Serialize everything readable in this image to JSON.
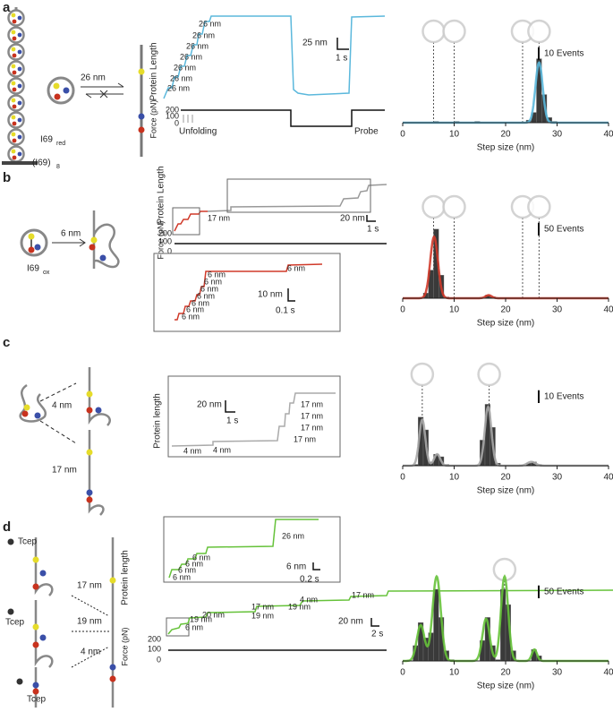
{
  "figure": {
    "a": {
      "label": "a",
      "chain": "(I69)",
      "chain_sub": "8",
      "arrow_label": "26 nm",
      "state": "I69",
      "state_sub": "red",
      "y_label": "Protein Length",
      "force_label": "Force (pN)",
      "force_ticks": [
        200,
        100,
        0
      ],
      "steps": [
        "26 nm",
        "26 nm",
        "26 nm",
        "26 nm",
        "26 nm",
        "26 nm",
        "26 nm"
      ],
      "scale_y": "25 nm",
      "scale_x": "1 s",
      "phase_1": "Unfolding",
      "phase_2": "Probe"
    },
    "b": {
      "label": "b",
      "arrow_label": "6 nm",
      "state": "I69",
      "state_sub": "ox",
      "y_label": "Protein Length",
      "force_label": "Force (pN)",
      "force_ticks": [
        200,
        100,
        0
      ],
      "step_main": "17 nm",
      "scale_y": "20 nm",
      "scale_x": "1 s",
      "inset_steps": [
        "6 nm",
        "6 nm",
        "6 nm",
        "6 nm",
        "6 nm",
        "6 nm",
        "6 nm",
        "6 nm"
      ],
      "inset_scale_y": "10 nm",
      "inset_scale_x": "0.1 s"
    },
    "c": {
      "label": "c",
      "arrow_top": "4 nm",
      "arrow_bottom": "17 nm",
      "y_label": "Protein length",
      "scale_y": "20 nm",
      "scale_x": "1 s",
      "steps": [
        "4 nm",
        "4 nm",
        "17 nm",
        "17 nm",
        "17 nm",
        "17 nm"
      ]
    },
    "d": {
      "label": "d",
      "reagent": [
        "Tcep",
        "Tcep",
        "Tcep"
      ],
      "arrows": [
        "17 nm",
        "19 nm",
        "4 nm"
      ],
      "y_label": "Protein length",
      "force_label": "Force (pN)",
      "force_ticks": [
        200,
        100,
        0
      ],
      "inset_steps": [
        "6 nm",
        "6 nm",
        "6 nm",
        "6 nm",
        "26 nm"
      ],
      "inset_scale_y": "6 nm",
      "inset_scale_x": "0.2 s",
      "steps": [
        "6 nm",
        "19 nm",
        "20 nm",
        "17 nm",
        "19 nm",
        "19 nm",
        "4 nm",
        "17 nm"
      ],
      "scale_y": "20 nm",
      "scale_x": "2 s"
    }
  },
  "chart_data": [
    {
      "type": "histogram",
      "xlabel": "Step size (nm)",
      "xlim": [
        0,
        40
      ],
      "xticks": [
        0,
        10,
        20,
        30,
        40
      ],
      "ylim": [
        0,
        70
      ],
      "bins": [
        0,
        1,
        2,
        3,
        4,
        5,
        6,
        7,
        8,
        9,
        10,
        11,
        12,
        13,
        14,
        15,
        16,
        17,
        18,
        19,
        20,
        21,
        22,
        23,
        24,
        25,
        26,
        27,
        28,
        29,
        30,
        31,
        32,
        33,
        34,
        35,
        36,
        37,
        38,
        39,
        40
      ],
      "values": [
        0,
        0,
        0,
        0,
        0,
        0,
        1,
        0,
        0,
        0,
        1,
        0,
        0,
        0,
        1,
        0,
        0,
        0,
        0,
        0,
        0,
        0,
        0,
        0,
        2,
        8,
        50,
        22,
        4,
        1,
        0,
        0,
        0,
        0,
        0,
        0,
        0,
        0,
        0,
        0
      ],
      "color": "#3a3a3a",
      "fit_color": "#5bb8dc",
      "fit_peaks": [
        {
          "mean": 26.5,
          "sd": 0.7,
          "height": 47
        }
      ],
      "scale_bar": {
        "value": 10,
        "label": "10 Events"
      },
      "reference_lines": [
        6,
        10,
        23.3,
        26.5
      ]
    },
    {
      "type": "histogram",
      "xlabel": "Step size (nm)",
      "xlim": [
        0,
        40
      ],
      "xticks": [
        0,
        10,
        20,
        30,
        40
      ],
      "ylim": [
        0,
        350
      ],
      "bins": [
        0,
        1,
        2,
        3,
        4,
        5,
        6,
        7,
        8,
        9,
        10,
        11,
        12,
        13,
        14,
        15,
        16,
        17,
        18,
        19,
        20,
        21,
        22,
        23,
        24,
        25,
        26,
        27,
        28,
        29,
        30,
        31,
        32,
        33,
        34,
        35,
        36,
        37,
        38,
        39,
        40
      ],
      "values": [
        0,
        0,
        0,
        0,
        20,
        110,
        270,
        90,
        5,
        0,
        0,
        0,
        0,
        0,
        0,
        0,
        12,
        6,
        0,
        0,
        0,
        0,
        0,
        0,
        0,
        0,
        0,
        0,
        0,
        0,
        0,
        0,
        0,
        0,
        0,
        0,
        0,
        0,
        0,
        0
      ],
      "color": "#3a3a3a",
      "fit_color": "#d03a2a",
      "fit_peaks": [
        {
          "mean": 6.1,
          "sd": 0.75,
          "height": 240
        },
        {
          "mean": 16.7,
          "sd": 0.6,
          "height": 12
        }
      ],
      "scale_bar": {
        "value": 50,
        "label": "50 Events"
      },
      "reference_lines": [
        6,
        10,
        23.3,
        26.5
      ]
    },
    {
      "type": "histogram",
      "xlabel": "Step size (nm)",
      "xlim": [
        0,
        40
      ],
      "xticks": [
        0,
        10,
        20,
        30,
        40
      ],
      "ylim": [
        0,
        70
      ],
      "bins": [
        0,
        1,
        2,
        3,
        4,
        5,
        6,
        7,
        8,
        9,
        10,
        11,
        12,
        13,
        14,
        15,
        16,
        17,
        18,
        19,
        20,
        21,
        22,
        23,
        24,
        25,
        26,
        27,
        28,
        29,
        30,
        31,
        32,
        33,
        34,
        35,
        36,
        37,
        38,
        39,
        40
      ],
      "values": [
        0,
        0,
        1,
        38,
        28,
        3,
        9,
        7,
        1,
        0,
        0,
        0,
        0,
        0,
        0,
        20,
        48,
        30,
        2,
        0,
        0,
        0,
        0,
        0,
        2,
        3,
        1,
        0,
        0,
        0,
        0,
        0,
        0,
        0,
        0,
        0,
        0,
        0,
        0,
        0
      ],
      "color": "#3a3a3a",
      "fit_color": "#a8a8a8",
      "fit_peaks": [
        {
          "mean": 3.8,
          "sd": 0.6,
          "height": 36
        },
        {
          "mean": 6.7,
          "sd": 0.6,
          "height": 9
        },
        {
          "mean": 16.6,
          "sd": 0.65,
          "height": 46
        },
        {
          "mean": 25,
          "sd": 0.8,
          "height": 3
        }
      ],
      "scale_bar": {
        "value": 10,
        "label": "10 Events"
      },
      "reference_lines": [
        3.8,
        16.8
      ]
    },
    {
      "type": "histogram",
      "xlabel": "Step size (nm)",
      "xlim": [
        0,
        40
      ],
      "xticks": [
        0,
        10,
        20,
        30,
        40
      ],
      "ylim": [
        0,
        350
      ],
      "bins": [
        0,
        1,
        2,
        3,
        4,
        5,
        6,
        7,
        8,
        9,
        10,
        11,
        12,
        13,
        14,
        15,
        16,
        17,
        18,
        19,
        20,
        21,
        22,
        23,
        24,
        25,
        26,
        27,
        28,
        29,
        30,
        31,
        32,
        33,
        34,
        35,
        36,
        37,
        38,
        39,
        40
      ],
      "values": [
        0,
        0,
        60,
        150,
        90,
        110,
        280,
        170,
        40,
        5,
        0,
        0,
        0,
        0,
        0,
        80,
        170,
        60,
        5,
        280,
        220,
        40,
        0,
        0,
        0,
        45,
        20,
        0,
        0,
        0,
        0,
        0,
        0,
        0,
        0,
        0,
        0,
        0,
        0,
        0
      ],
      "color": "#3a3a3a",
      "fit_color": "#66c23a",
      "fit_peaks": [
        {
          "mean": 3.5,
          "sd": 0.75,
          "height": 140
        },
        {
          "mean": 6.6,
          "sd": 0.8,
          "height": 330
        },
        {
          "mean": 16.2,
          "sd": 0.7,
          "height": 165
        },
        {
          "mean": 19.8,
          "sd": 0.7,
          "height": 330
        },
        {
          "mean": 25.6,
          "sd": 0.5,
          "height": 45
        }
      ],
      "scale_bar": {
        "value": 50,
        "label": "50 Events"
      },
      "reference_lines": [
        19.8
      ]
    }
  ]
}
